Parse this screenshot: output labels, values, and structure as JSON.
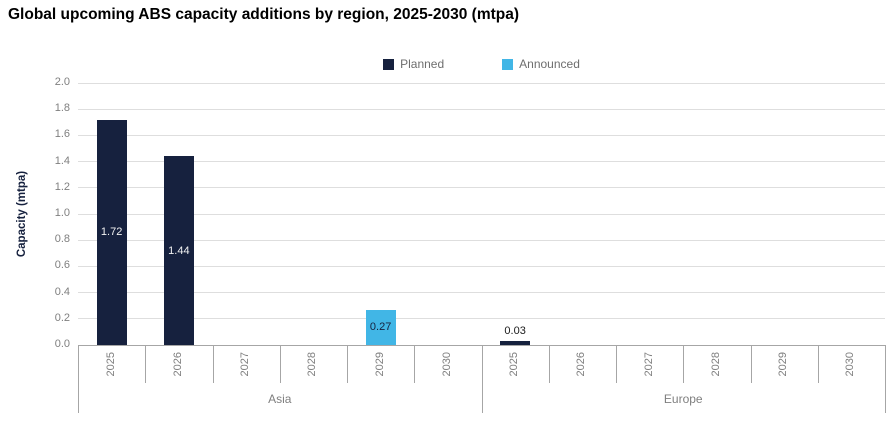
{
  "chart_data": {
    "type": "bar",
    "title": "Global upcoming ABS capacity additions by region, 2025-2030 (mtpa)",
    "ylabel": "Capacity (mtpa)",
    "ylim": [
      0,
      2.0
    ],
    "yticks": [
      "0.0",
      "0.2",
      "0.4",
      "0.6",
      "0.8",
      "1.0",
      "1.2",
      "1.4",
      "1.6",
      "1.8",
      "2.0"
    ],
    "grid": "horizontal",
    "legend_position": "top-center",
    "series": [
      {
        "name": "Planned",
        "color": "#16213e"
      },
      {
        "name": "Announced",
        "color": "#41b6e6"
      }
    ],
    "groups": [
      {
        "label": "Asia",
        "years": [
          "2025",
          "2026",
          "2027",
          "2028",
          "2029",
          "2030"
        ]
      },
      {
        "label": "Europe",
        "years": [
          "2025",
          "2026",
          "2027",
          "2028",
          "2029",
          "2030"
        ]
      }
    ],
    "bars": [
      {
        "group": "Asia",
        "year": "2025",
        "series": "Planned",
        "value": 1.72,
        "label": "1.72",
        "label_position": "inside",
        "label_color": "#f2f2f2"
      },
      {
        "group": "Asia",
        "year": "2026",
        "series": "Planned",
        "value": 1.44,
        "label": "1.44",
        "label_position": "inside",
        "label_color": "#f2f2f2"
      },
      {
        "group": "Asia",
        "year": "2029",
        "series": "Announced",
        "value": 0.27,
        "label": "0.27",
        "label_position": "inside",
        "label_color": "#16213e"
      },
      {
        "group": "Europe",
        "year": "2025",
        "series": "Planned",
        "value": 0.03,
        "label": "0.03",
        "label_position": "above",
        "label_color": "#1a1a1a"
      }
    ],
    "colors": {
      "planned": "#16213e",
      "announced": "#41b6e6",
      "gridline": "#dedede",
      "axis_line": "#a6a6a6",
      "tick_text": "#7f7f7f"
    }
  }
}
